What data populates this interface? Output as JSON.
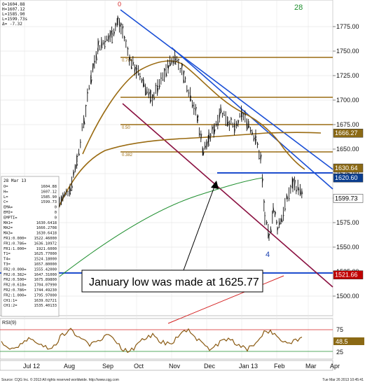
{
  "header": {
    "lines": [
      "O=1604.88",
      "H=1607.12",
      "L=1585.90",
      "L=1599.73s",
      "Δ= -7.32"
    ]
  },
  "wave_labels": {
    "top": "0",
    "low": "4",
    "right": "28"
  },
  "fib_labels": [
    "0.764",
    "0.50",
    "0.382"
  ],
  "info_panel": {
    "date": "28 Mar 13",
    "rows": [
      [
        "O=",
        "1604.88"
      ],
      [
        "H=",
        "1607.12"
      ],
      [
        "L=",
        "1585.90"
      ],
      [
        "C=",
        "1599.73"
      ],
      [
        "EMA=",
        "0"
      ],
      [
        "EMI=",
        "0"
      ],
      [
        "EMPTI=",
        "0"
      ],
      [
        "MA1=",
        "1630.6418"
      ],
      [
        "MA2=",
        "1666.2708"
      ],
      [
        "MA3=",
        "1630.6418"
      ],
      [
        "FR1:0.000=",
        "1522.46000"
      ],
      [
        "FR1:0.786=",
        "1636.10972"
      ],
      [
        "FR1:1.000=",
        "1921.6000"
      ],
      [
        "T1=",
        "1625.77000"
      ],
      [
        "T4=",
        "1524.18000"
      ],
      [
        "T3=",
        "1657.80000"
      ],
      [
        "FR2:0.000=",
        "1555.42000"
      ],
      [
        "FR2:0.382=",
        "1647.31000"
      ],
      [
        "FR2:0.500=",
        "1675.89800"
      ],
      [
        "FR2:0.618=",
        "1704.07990"
      ],
      [
        "FR2:0.786=",
        "1744.49230"
      ],
      [
        "FR2:1.000=",
        "1795.97000"
      ],
      [
        "CH1:1=",
        "1639.02721"
      ],
      [
        "CH1:2=",
        "1535.40133"
      ]
    ]
  },
  "annotation": {
    "text": "January low was made at 1625.77"
  },
  "price_axis": {
    "ticks": [
      "1775.00",
      "1750.00",
      "1725.00",
      "1700.00",
      "1675.00",
      "1650.00",
      "1625.00",
      "1600.00",
      "1575.00",
      "1550.00",
      "1525.00",
      "1500.00"
    ],
    "callouts": [
      {
        "value": "1666.27",
        "bg": "#8b6914",
        "fg": "#ffffff"
      },
      {
        "value": "1630.64",
        "bg": "#8b6914",
        "fg": "#ffffff"
      },
      {
        "value": "1620.60",
        "bg": "#0a3d8f",
        "fg": "#ffffff"
      },
      {
        "value": "1599.73",
        "bg": "#ffffff",
        "fg": "#000000"
      },
      {
        "value": "1521.66",
        "bg": "#c00000",
        "fg": "#ffffff"
      }
    ]
  },
  "rsi": {
    "label": "RSI(9)",
    "value": "48.5",
    "ticks": [
      "75",
      "25"
    ]
  },
  "time_axis": {
    "labels": [
      "Jul 12",
      "Aug",
      "Sep",
      "Oct",
      "Nov",
      "Dec",
      "Jan 13",
      "Feb",
      "Mar",
      "Apr"
    ]
  },
  "footer": {
    "left": "Source: CQG Inc. © 2013 All rights reserved worldwide. http://www.cqg.com",
    "right": "Tue Mar 26 2013 10:45:41"
  },
  "colors": {
    "downtrend": "#1a4fd6",
    "level_line": "#9a6b12",
    "ma_fast": "#9a6b12",
    "ma_slow": "#1f8f2f",
    "support_blue": "#1f4fcf",
    "maroon_channel": "#8a1040",
    "red_line": "#d42020"
  }
}
